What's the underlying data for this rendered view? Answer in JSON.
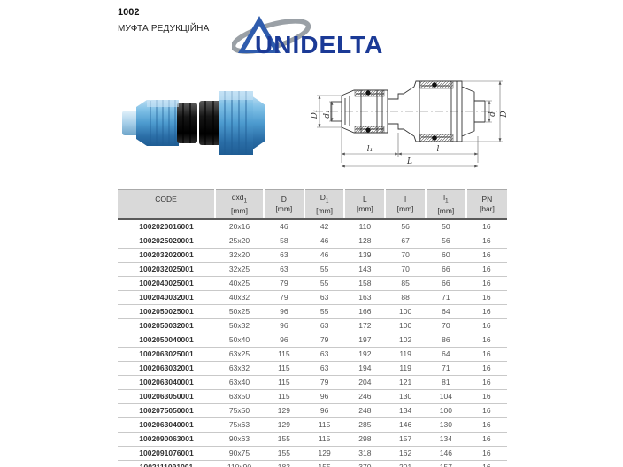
{
  "page": {
    "product_code": "1002",
    "product_title": "МУФТА РЕДУКЦІЙНА"
  },
  "logo": {
    "text": "UNIDELTA",
    "navy": "#1b3a96",
    "blue": "#2f5cad",
    "gray": "#9aa0a6"
  },
  "photo": {
    "description": "reducing-compression-coupling-photo",
    "body_blue": "#4d9bcf",
    "nut_black": "#141414"
  },
  "drawing": {
    "labels": {
      "D1": "D₁",
      "d1": "d₁",
      "d": "d",
      "D": "D",
      "l1": "l₁",
      "l": "l",
      "L": "L"
    }
  },
  "table": {
    "col_widths": [
      "25%",
      "12.5%",
      "10.4%",
      "10.4%",
      "10.4%",
      "10.4%",
      "10.4%",
      "10.5%"
    ],
    "columns": [
      {
        "key": "code",
        "label": "CODE",
        "sub": "",
        "unit": ""
      },
      {
        "key": "dxd1",
        "label": "dxd",
        "sub": "1",
        "unit": "[mm]"
      },
      {
        "key": "D",
        "label": "D",
        "sub": "",
        "unit": "[mm]"
      },
      {
        "key": "D1",
        "label": "D",
        "sub": "1",
        "unit": "[mm]"
      },
      {
        "key": "L",
        "label": "L",
        "sub": "",
        "unit": "[mm]"
      },
      {
        "key": "l",
        "label": "l",
        "sub": "",
        "unit": "[mm]"
      },
      {
        "key": "l1",
        "label": "l",
        "sub": "1",
        "unit": "[mm]"
      },
      {
        "key": "PN",
        "label": "PN",
        "sub": "",
        "unit": "[bar]"
      }
    ],
    "rows": [
      [
        "1002020016001",
        "20x16",
        "46",
        "42",
        "110",
        "56",
        "50",
        "16"
      ],
      [
        "1002025020001",
        "25x20",
        "58",
        "46",
        "128",
        "67",
        "56",
        "16"
      ],
      [
        "1002032020001",
        "32x20",
        "63",
        "46",
        "139",
        "70",
        "60",
        "16"
      ],
      [
        "1002032025001",
        "32x25",
        "63",
        "55",
        "143",
        "70",
        "66",
        "16"
      ],
      [
        "1002040025001",
        "40x25",
        "79",
        "55",
        "158",
        "85",
        "66",
        "16"
      ],
      [
        "1002040032001",
        "40x32",
        "79",
        "63",
        "163",
        "88",
        "71",
        "16"
      ],
      [
        "1002050025001",
        "50x25",
        "96",
        "55",
        "166",
        "100",
        "64",
        "16"
      ],
      [
        "1002050032001",
        "50x32",
        "96",
        "63",
        "172",
        "100",
        "70",
        "16"
      ],
      [
        "1002050040001",
        "50x40",
        "96",
        "79",
        "197",
        "102",
        "86",
        "16"
      ],
      [
        "1002063025001",
        "63x25",
        "115",
        "63",
        "192",
        "119",
        "64",
        "16"
      ],
      [
        "1002063032001",
        "63x32",
        "115",
        "63",
        "194",
        "119",
        "71",
        "16"
      ],
      [
        "1002063040001",
        "63x40",
        "115",
        "79",
        "204",
        "121",
        "81",
        "16"
      ],
      [
        "1002063050001",
        "63x50",
        "115",
        "96",
        "246",
        "130",
        "104",
        "16"
      ],
      [
        "1002075050001",
        "75x50",
        "129",
        "96",
        "248",
        "134",
        "100",
        "16"
      ],
      [
        "1002063040001",
        "75x63",
        "129",
        "115",
        "285",
        "146",
        "130",
        "16"
      ],
      [
        "1002090063001",
        "90x63",
        "155",
        "115",
        "298",
        "157",
        "134",
        "16"
      ],
      [
        "1002091076001",
        "90x75",
        "155",
        "129",
        "318",
        "162",
        "146",
        "16"
      ],
      [
        "1002111091001",
        "110x90",
        "183",
        "155",
        "370",
        "201",
        "157",
        "16"
      ]
    ]
  }
}
